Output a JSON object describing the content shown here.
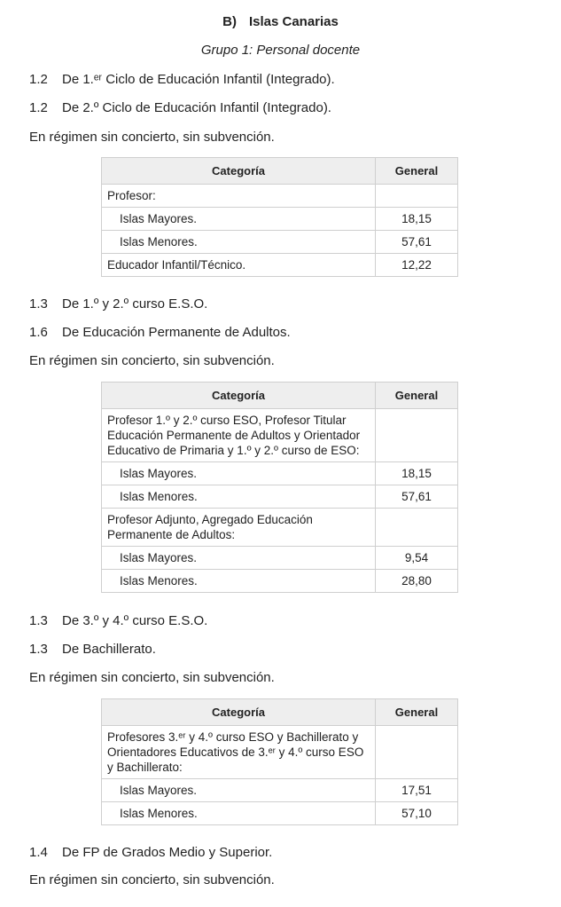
{
  "title": {
    "letter": "B)",
    "text": "Islas Canarias"
  },
  "subtitle": "Grupo 1: Personal docente",
  "s1": [
    {
      "num": "1.2",
      "text": "De 1.ᵉʳ Ciclo de Educación Infantil (Integrado)."
    },
    {
      "num": "1.2",
      "text": "De 2.º Ciclo de Educación Infantil (Integrado)."
    }
  ],
  "regime": "En régimen sin concierto, sin subvención.",
  "headers": {
    "cat": "Categoría",
    "gen": "General"
  },
  "t1": [
    {
      "cat": "Profesor:",
      "gen": ""
    },
    {
      "cat": "Islas Mayores.",
      "gen": "18,15"
    },
    {
      "cat": "Islas Menores.",
      "gen": "57,61"
    },
    {
      "cat": "Educador Infantil/Técnico.",
      "gen": "12,22"
    }
  ],
  "s2": [
    {
      "num": "1.3",
      "text": "De 1.º y 2.º curso E.S.O."
    },
    {
      "num": "1.6",
      "text": "De Educación Permanente de Adultos."
    }
  ],
  "t2": [
    {
      "cat": "Profesor 1.º y 2.º curso ESO, Profesor Titular Educación Permanente de Adultos y Orientador Educativo de Primaria y 1.º y 2.º curso de ESO:",
      "gen": ""
    },
    {
      "cat": "Islas Mayores.",
      "gen": "18,15"
    },
    {
      "cat": "Islas Menores.",
      "gen": "57,61"
    },
    {
      "cat": "Profesor Adjunto, Agregado Educación Permanente de Adultos:",
      "gen": ""
    },
    {
      "cat": "Islas Mayores.",
      "gen": "9,54"
    },
    {
      "cat": "Islas Menores.",
      "gen": "28,80"
    }
  ],
  "s3": [
    {
      "num": "1.3",
      "text": "De 3.º y 4.º curso E.S.O."
    },
    {
      "num": "1.3",
      "text": "De Bachillerato."
    }
  ],
  "t3": [
    {
      "cat": "Profesores 3.ᵉʳ y 4.º curso ESO y Bachillerato y Orientadores Educativos de 3.ᵉʳ y 4.º curso ESO y Bachillerato:",
      "gen": ""
    },
    {
      "cat": "Islas Mayores.",
      "gen": "17,51"
    },
    {
      "cat": "Islas Menores.",
      "gen": "57,10"
    }
  ],
  "s4": [
    {
      "num": "1.4",
      "text": "De FP de Grados Medio y Superior."
    }
  ]
}
